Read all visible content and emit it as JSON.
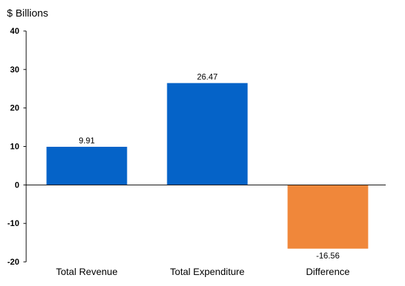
{
  "chart_data": {
    "type": "bar",
    "ylabel": "$ Billions",
    "categories": [
      "Total Revenue",
      "Total Expenditure",
      "Difference"
    ],
    "values": [
      9.91,
      26.47,
      -16.56
    ],
    "data_labels": [
      "9.91",
      "26.47",
      "-16.56"
    ],
    "ylim": [
      -20,
      40
    ],
    "yticks": [
      40,
      30,
      20,
      10,
      0,
      -10,
      -20
    ],
    "grid": false,
    "legend": "none",
    "colors": {
      "positive": "#0563C8",
      "negative": "#F0873A",
      "axis": "#000000"
    }
  }
}
